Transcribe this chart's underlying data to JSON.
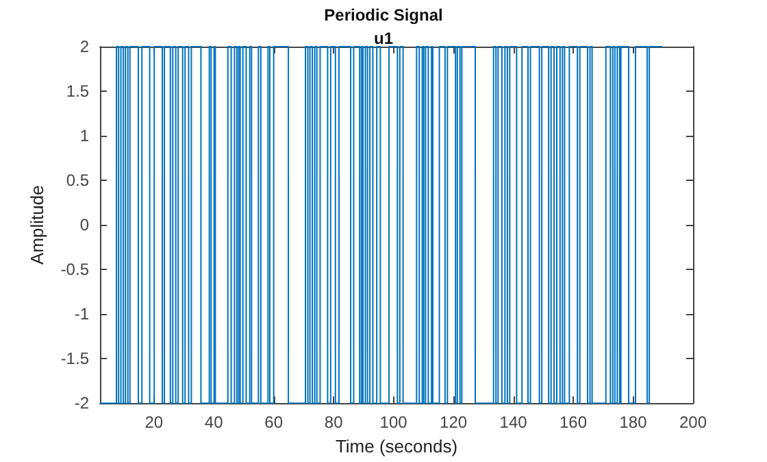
{
  "chart_data": {
    "type": "step",
    "title": "Periodic Signal",
    "subtitle": "u1",
    "xlabel": "Time (seconds)",
    "ylabel": "Amplitude",
    "x": [
      2,
      7.5,
      8.2,
      9,
      9.8,
      10.5,
      11.3,
      12,
      14.8,
      16,
      18.6,
      20.1,
      22.8,
      23.5,
      25.5,
      26.3,
      27.3,
      28.1,
      29.6,
      30.4,
      31.6,
      32.5,
      35.7,
      38.5,
      39.1,
      40.1,
      40.5,
      44.7,
      45.8,
      46.9,
      47.7,
      48.3,
      48.8,
      49.7,
      50.8,
      52,
      52.6,
      54.9,
      55.7,
      58.1,
      58.7,
      60,
      64.9,
      70.6,
      71.4,
      72.1,
      72.9,
      73.7,
      74.4,
      75.5,
      78,
      79,
      80.6,
      81.8,
      85.7,
      86.7,
      88.7,
      89.3,
      89.8,
      90.6,
      91.3,
      92.1,
      93.1,
      94.4,
      95.6,
      98.5,
      101.3,
      102.1,
      103.2,
      107.7,
      108.6,
      109.6,
      110.1,
      110.7,
      111.6,
      112.7,
      113.1,
      115.3,
      117.2,
      118,
      120.7,
      121.3,
      122.2,
      122.8,
      127.3,
      133.4,
      134.2,
      134.9,
      136.2,
      137.2,
      138,
      138.8,
      141.1,
      142.9,
      144.9,
      145.7,
      148.7,
      149.5,
      151.8,
      152.6,
      153.6,
      154.5,
      155.6,
      156.4,
      157.1,
      158.7,
      161.4,
      162.2,
      164.8,
      165.6,
      166.3,
      170.9,
      172.4,
      173.2,
      173.9,
      174.7,
      175.5,
      175.9,
      178.5,
      180.8,
      184.7,
      185.4,
      189.7
    ],
    "series": [
      {
        "color": "#0072bd",
        "values": [
          -2,
          2,
          -2,
          2,
          -2,
          2,
          -2,
          2,
          -2,
          2,
          -2,
          2,
          -2,
          2,
          -2,
          2,
          -2,
          2,
          -2,
          2,
          -2,
          2,
          -2,
          2,
          -2,
          2,
          -2,
          2,
          -2,
          2,
          -2,
          2,
          -2,
          2,
          -2,
          2,
          -2,
          2,
          -2,
          2,
          -2,
          2,
          -2,
          2,
          -2,
          2,
          -2,
          2,
          -2,
          2,
          -2,
          2,
          -2,
          2,
          -2,
          2,
          -2,
          2,
          -2,
          2,
          -2,
          2,
          -2,
          2,
          -2,
          2,
          -2,
          2,
          -2,
          2,
          -2,
          2,
          -2,
          2,
          -2,
          2,
          -2,
          2,
          -2,
          2,
          -2,
          2,
          -2,
          2,
          -2,
          2,
          -2,
          2,
          -2,
          2,
          -2,
          2,
          -2,
          2,
          -2,
          2,
          -2,
          2,
          -2,
          2,
          -2,
          2,
          -2,
          2,
          -2,
          2,
          -2,
          2,
          -2,
          2,
          -2,
          2,
          -2,
          2,
          -2,
          2,
          -2,
          2,
          -2,
          2,
          -2,
          2,
          2
        ]
      }
    ],
    "xlim": [
      2,
      200
    ],
    "xticks": [
      20,
      40,
      60,
      80,
      100,
      120,
      140,
      160,
      180,
      200
    ],
    "ylim": [
      -2,
      2
    ],
    "yticks": [
      -2,
      -1.5,
      -1,
      -0.5,
      0,
      0.5,
      1,
      1.5,
      2
    ],
    "grid": false,
    "line_style": "solid",
    "marker": "none"
  }
}
